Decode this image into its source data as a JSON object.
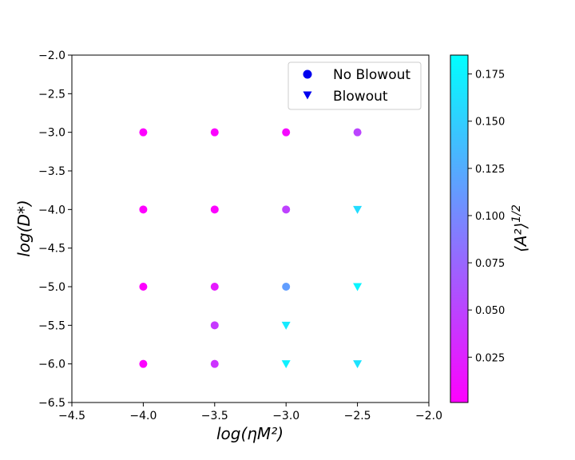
{
  "chart_data": {
    "type": "scatter",
    "title": "",
    "xlabel": "log(ηM²)",
    "ylabel": "log(D*)",
    "xlim": [
      -4.5,
      -2.0
    ],
    "ylim": [
      -6.5,
      -2.0
    ],
    "xticks": [
      -4.5,
      -4.0,
      -3.5,
      -3.0,
      -2.5,
      -2.0
    ],
    "yticks": [
      -6.5,
      -6.0,
      -5.5,
      -5.0,
      -4.5,
      -4.0,
      -3.5,
      -3.0,
      -2.5,
      -2.0
    ],
    "xtick_labels": [
      "−4.5",
      "−4.0",
      "−3.5",
      "−3.0",
      "−2.5",
      "−2.0"
    ],
    "ytick_labels": [
      "−6.5",
      "−6.0",
      "−5.5",
      "−5.0",
      "−4.5",
      "−4.0",
      "−3.5",
      "−3.0",
      "−2.5",
      "−2.0"
    ],
    "grid": false,
    "legend_position": "top-right",
    "colormap": "cool",
    "colormap_stops": [
      "#ff00ff",
      "#00ffff"
    ],
    "series": [
      {
        "name": "No Blowout",
        "marker": "circle",
        "legend_color": "#0000ee",
        "points": [
          {
            "x": -4.0,
            "y": -3.0,
            "c": 0.002
          },
          {
            "x": -3.5,
            "y": -3.0,
            "c": 0.003
          },
          {
            "x": -3.0,
            "y": -3.0,
            "c": 0.008
          },
          {
            "x": -2.5,
            "y": -3.0,
            "c": 0.05
          },
          {
            "x": -4.0,
            "y": -4.0,
            "c": 0.002
          },
          {
            "x": -3.5,
            "y": -4.0,
            "c": 0.003
          },
          {
            "x": -3.0,
            "y": -4.0,
            "c": 0.048
          },
          {
            "x": -4.0,
            "y": -5.0,
            "c": 0.002
          },
          {
            "x": -3.5,
            "y": -5.0,
            "c": 0.02
          },
          {
            "x": -3.0,
            "y": -5.0,
            "c": 0.115
          },
          {
            "x": -3.5,
            "y": -5.5,
            "c": 0.042
          },
          {
            "x": -4.0,
            "y": -6.0,
            "c": 0.003
          },
          {
            "x": -3.5,
            "y": -6.0,
            "c": 0.038
          }
        ]
      },
      {
        "name": "Blowout",
        "marker": "triangle-down",
        "legend_color": "#0000ee",
        "points": [
          {
            "x": -2.5,
            "y": -4.0,
            "c": 0.16
          },
          {
            "x": -2.5,
            "y": -5.0,
            "c": 0.178
          },
          {
            "x": -3.0,
            "y": -5.5,
            "c": 0.17
          },
          {
            "x": -3.0,
            "y": -6.0,
            "c": 0.175
          },
          {
            "x": -2.5,
            "y": -6.0,
            "c": 0.165
          }
        ]
      }
    ],
    "colorbar": {
      "label": "⟨A²⟩^(1/2)",
      "range": [
        0.001,
        0.185
      ],
      "ticks": [
        0.025,
        0.05,
        0.075,
        0.1,
        0.125,
        0.15,
        0.175
      ],
      "tick_labels": [
        "0.025",
        "0.050",
        "0.075",
        "0.100",
        "0.125",
        "0.150",
        "0.175"
      ]
    }
  }
}
